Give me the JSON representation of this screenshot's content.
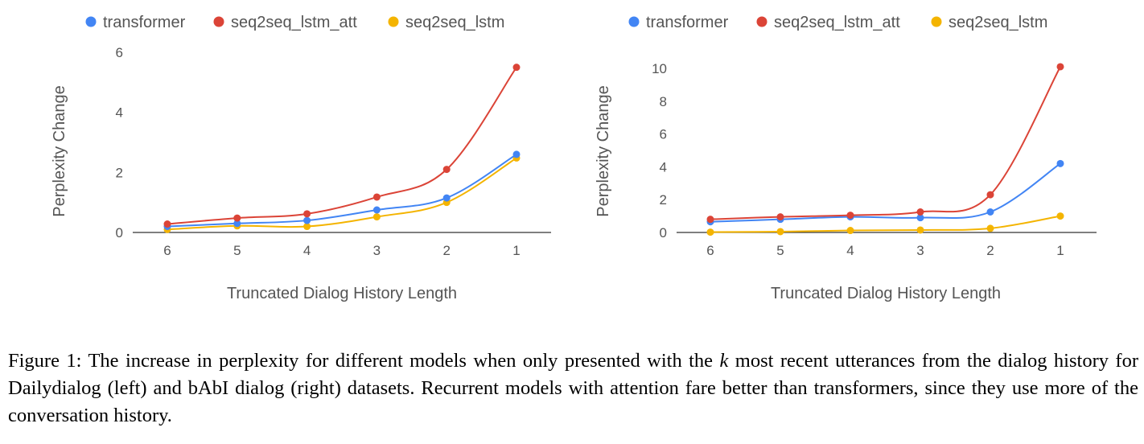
{
  "colors": {
    "transformer": "#4285f4",
    "seq2seq_lstm_att": "#db4437",
    "seq2seq_lstm": "#f4b400",
    "axis": "#333333",
    "text": "#555555"
  },
  "chart_data": [
    {
      "type": "line",
      "title": "",
      "xlabel": "Truncated Dialog History Length",
      "ylabel": "Perplexity Change",
      "categories": [
        "6",
        "5",
        "4",
        "3",
        "2",
        "1"
      ],
      "ylim": [
        0,
        6
      ],
      "yticks": [
        0,
        2,
        4,
        6
      ],
      "grid": false,
      "legend_position": "top",
      "series": [
        {
          "name": "transformer",
          "color": "#4285f4",
          "values": [
            0.2,
            0.3,
            0.4,
            0.75,
            1.15,
            2.6
          ]
        },
        {
          "name": "seq2seq_lstm_att",
          "color": "#db4437",
          "values": [
            0.28,
            0.48,
            0.62,
            1.18,
            2.1,
            5.5
          ]
        },
        {
          "name": "seq2seq_lstm",
          "color": "#f4b400",
          "values": [
            0.1,
            0.22,
            0.2,
            0.52,
            1.0,
            2.48
          ]
        }
      ]
    },
    {
      "type": "line",
      "title": "",
      "xlabel": "Truncated Dialog History Length",
      "ylabel": "Perplexity Change",
      "categories": [
        "6",
        "5",
        "4",
        "3",
        "2",
        "1"
      ],
      "ylim": [
        0,
        10
      ],
      "yticks": [
        0,
        2,
        4,
        6,
        8,
        10
      ],
      "grid": false,
      "legend_position": "top",
      "series": [
        {
          "name": "transformer",
          "color": "#4285f4",
          "values": [
            0.65,
            0.8,
            0.95,
            0.9,
            1.25,
            4.2
          ]
        },
        {
          "name": "seq2seq_lstm_att",
          "color": "#db4437",
          "values": [
            0.8,
            0.95,
            1.05,
            1.25,
            2.3,
            10.1
          ]
        },
        {
          "name": "seq2seq_lstm",
          "color": "#f4b400",
          "values": [
            0.02,
            0.05,
            0.12,
            0.15,
            0.25,
            1.0
          ]
        }
      ]
    }
  ],
  "caption": {
    "label": "Figure 1:",
    "text_before": "The increase in perplexity for different models when only presented with the ",
    "k": "k",
    "text_after": " most recent utterances from the dialog history for Dailydialog (left) and bAbI dialog (right) datasets.  Recurrent models with attention fare better than transformers, since they use more of the conversation history."
  }
}
